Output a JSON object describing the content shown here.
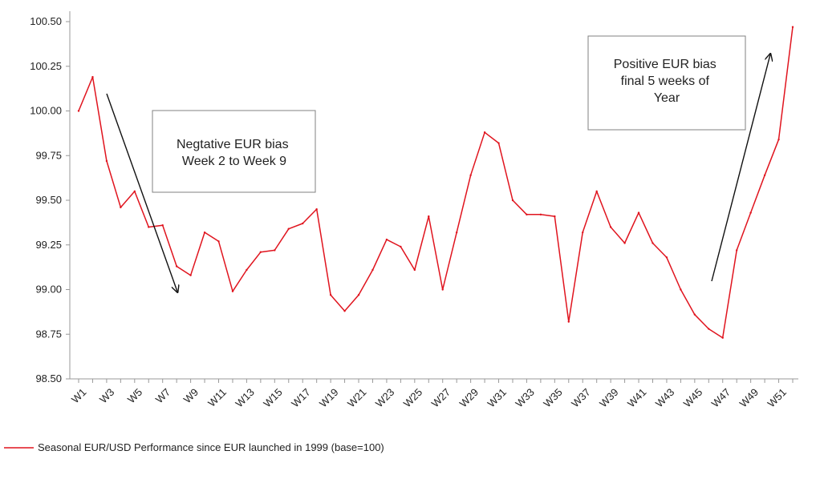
{
  "chart_data": {
    "type": "line",
    "title": "",
    "xlabel": "",
    "ylabel": "",
    "ylim": [
      98.5,
      100.5
    ],
    "yticks": [
      98.5,
      98.75,
      99.0,
      99.25,
      99.5,
      99.75,
      100.0,
      100.25,
      100.5
    ],
    "ytick_labels": [
      "98.50",
      "98.75",
      "99.00",
      "99.25",
      "99.50",
      "99.75",
      "100.00",
      "100.25",
      "100.50"
    ],
    "x": [
      "W1",
      "W2",
      "W3",
      "W4",
      "W5",
      "W6",
      "W7",
      "W8",
      "W9",
      "W10",
      "W11",
      "W12",
      "W13",
      "W14",
      "W15",
      "W16",
      "W17",
      "W18",
      "W19",
      "W20",
      "W21",
      "W22",
      "W23",
      "W24",
      "W25",
      "W26",
      "W27",
      "W28",
      "W29",
      "W30",
      "W31",
      "W32",
      "W33",
      "W34",
      "W35",
      "W36",
      "W37",
      "W38",
      "W39",
      "W40",
      "W41",
      "W42",
      "W43",
      "W44",
      "W45",
      "W46",
      "W47",
      "W48",
      "W49",
      "W50",
      "W51",
      "W52"
    ],
    "xtick_labels": [
      "W1",
      "W3",
      "W5",
      "W7",
      "W9",
      "W11",
      "W13",
      "W15",
      "W17",
      "W19",
      "W21",
      "W23",
      "W25",
      "W27",
      "W29",
      "W31",
      "W33",
      "W35",
      "W37",
      "W39",
      "W41",
      "W43",
      "W45",
      "W47",
      "W49",
      "W51"
    ],
    "series": [
      {
        "name": "Seasonal EUR/USD Performance since EUR launched in 1999 (base=100)",
        "color": "#e0141e",
        "values": [
          100.0,
          100.19,
          99.72,
          99.46,
          99.55,
          99.35,
          99.36,
          99.13,
          99.08,
          99.32,
          99.27,
          98.99,
          99.11,
          99.21,
          99.22,
          99.34,
          99.37,
          99.45,
          98.97,
          98.88,
          98.97,
          99.11,
          99.28,
          99.24,
          99.11,
          99.41,
          99.0,
          99.32,
          99.64,
          99.88,
          99.82,
          99.5,
          99.42,
          99.42,
          99.41,
          98.82,
          99.32,
          99.55,
          99.35,
          99.26,
          99.43,
          99.26,
          99.18,
          99.0,
          98.86,
          98.78,
          98.73,
          99.22,
          99.43,
          99.64,
          99.84,
          100.47
        ]
      }
    ],
    "grid": false,
    "legend_position": "bottom-left",
    "annotations": [
      {
        "text_lines": [
          "Negtative EUR bias",
          "Week 2 to Week 9"
        ]
      },
      {
        "text_lines": [
          "Positive EUR bias",
          "final 5 weeks of",
          "Year"
        ]
      }
    ],
    "axis_color": "#999999",
    "arrow_color": "#111111"
  }
}
